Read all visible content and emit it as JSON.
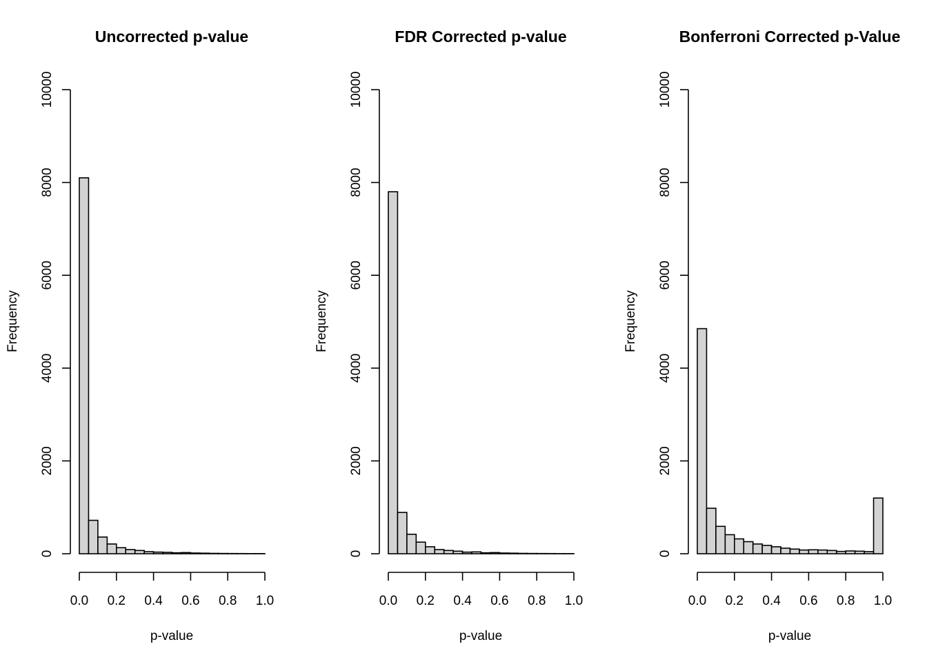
{
  "chart_data": [
    {
      "type": "bar",
      "title": "Uncorrected p-value",
      "xlabel": "p-value",
      "ylabel": "Frequency",
      "xlim": [
        0,
        1
      ],
      "ylim": [
        0,
        10000
      ],
      "x_ticks": [
        "0.0",
        "0.2",
        "0.4",
        "0.6",
        "0.8",
        "1.0"
      ],
      "y_ticks": [
        "0",
        "2000",
        "4000",
        "6000",
        "8000",
        "10000"
      ],
      "bin_width": 0.05,
      "bin_starts": [
        0,
        0.05,
        0.1,
        0.15,
        0.2,
        0.25,
        0.3,
        0.35,
        0.4,
        0.45,
        0.5,
        0.55,
        0.6,
        0.65,
        0.7,
        0.75,
        0.8,
        0.85,
        0.9,
        0.95
      ],
      "values": [
        8100,
        720,
        360,
        210,
        130,
        90,
        70,
        45,
        35,
        30,
        20,
        25,
        15,
        12,
        8,
        6,
        5,
        4,
        3,
        3
      ],
      "bar_color": "#d3d3d3"
    },
    {
      "type": "bar",
      "title": "FDR Corrected p-value",
      "xlabel": "p-value",
      "ylabel": "Frequency",
      "xlim": [
        0,
        1
      ],
      "ylim": [
        0,
        10000
      ],
      "x_ticks": [
        "0.0",
        "0.2",
        "0.4",
        "0.6",
        "0.8",
        "1.0"
      ],
      "y_ticks": [
        "0",
        "2000",
        "4000",
        "6000",
        "8000",
        "10000"
      ],
      "bin_width": 0.05,
      "bin_starts": [
        0,
        0.05,
        0.1,
        0.15,
        0.2,
        0.25,
        0.3,
        0.35,
        0.4,
        0.45,
        0.5,
        0.55,
        0.6,
        0.65,
        0.7,
        0.75,
        0.8,
        0.85,
        0.9,
        0.95
      ],
      "values": [
        7800,
        890,
        420,
        250,
        150,
        90,
        70,
        55,
        35,
        40,
        20,
        25,
        15,
        12,
        8,
        6,
        5,
        4,
        3,
        3
      ],
      "bar_color": "#d3d3d3"
    },
    {
      "type": "bar",
      "title": "Bonferroni Corrected p-Value",
      "xlabel": "p-value",
      "ylabel": "Frequency",
      "xlim": [
        0,
        1
      ],
      "ylim": [
        0,
        10000
      ],
      "x_ticks": [
        "0.0",
        "0.2",
        "0.4",
        "0.6",
        "0.8",
        "1.0"
      ],
      "y_ticks": [
        "0",
        "2000",
        "4000",
        "6000",
        "8000",
        "10000"
      ],
      "bin_width": 0.05,
      "bin_starts": [
        0,
        0.05,
        0.1,
        0.15,
        0.2,
        0.25,
        0.3,
        0.35,
        0.4,
        0.45,
        0.5,
        0.55,
        0.6,
        0.65,
        0.7,
        0.75,
        0.8,
        0.85,
        0.9,
        0.95
      ],
      "values": [
        4850,
        980,
        590,
        410,
        320,
        260,
        210,
        180,
        150,
        120,
        100,
        80,
        85,
        80,
        70,
        50,
        60,
        55,
        45,
        1200
      ],
      "bar_color": "#d3d3d3"
    }
  ]
}
